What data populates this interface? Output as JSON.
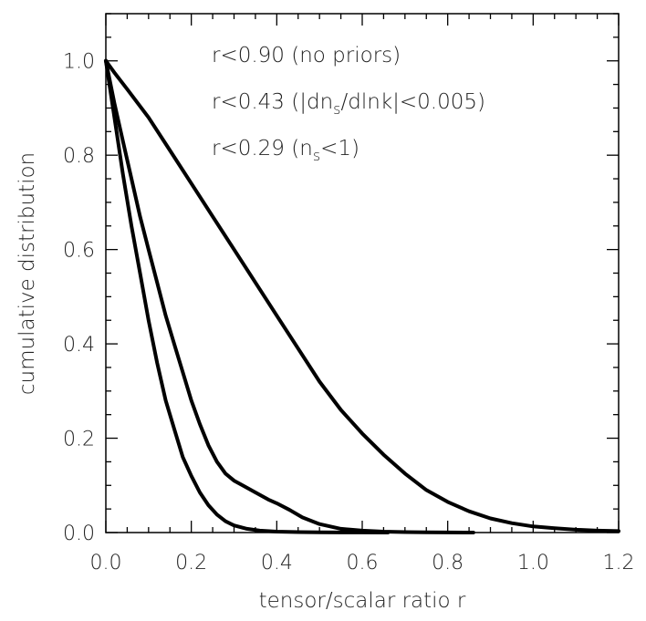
{
  "chart_data": {
    "type": "line",
    "xlabel": "tensor/scalar ratio r",
    "ylabel": "cumulative distribution",
    "xlim": [
      0,
      1.2
    ],
    "ylim": [
      0,
      1.1
    ],
    "x_ticks": [
      "0.0",
      "0.2",
      "0.4",
      "0.6",
      "0.8",
      "1.0",
      "1.2"
    ],
    "y_ticks": [
      "0.0",
      "0.2",
      "0.4",
      "0.6",
      "0.8",
      "1.0"
    ],
    "grid": false,
    "annotations": {
      "line1": "r<0.90 (no priors)",
      "line2_prefix": "r<0.43 (|dn",
      "line2_sub": "s",
      "line2_suffix": "/dlnk|<0.005)",
      "line3_prefix": "r<0.29 (n",
      "line3_sub": "s",
      "line3_suffix": "<1)"
    },
    "series": [
      {
        "x": [
          0,
          0.02,
          0.05,
          0.1,
          0.15,
          0.2,
          0.25,
          0.3,
          0.35,
          0.4,
          0.45,
          0.5,
          0.55,
          0.6,
          0.65,
          0.7,
          0.75,
          0.8,
          0.85,
          0.9,
          0.95,
          1.0,
          1.05,
          1.1,
          1.15,
          1.2
        ],
        "y": [
          1.0,
          0.975,
          0.94,
          0.88,
          0.81,
          0.74,
          0.67,
          0.6,
          0.53,
          0.46,
          0.39,
          0.32,
          0.26,
          0.21,
          0.165,
          0.125,
          0.09,
          0.065,
          0.045,
          0.03,
          0.02,
          0.013,
          0.009,
          0.006,
          0.004,
          0.003
        ]
      },
      {
        "x": [
          0,
          0.02,
          0.04,
          0.06,
          0.08,
          0.1,
          0.12,
          0.14,
          0.16,
          0.18,
          0.2,
          0.22,
          0.24,
          0.26,
          0.28,
          0.3,
          0.32,
          0.35,
          0.38,
          0.4,
          0.43,
          0.46,
          0.5,
          0.55,
          0.6,
          0.65,
          0.7,
          0.75,
          0.8,
          0.86
        ],
        "y": [
          1.0,
          0.91,
          0.83,
          0.75,
          0.67,
          0.6,
          0.53,
          0.46,
          0.4,
          0.34,
          0.28,
          0.23,
          0.185,
          0.15,
          0.125,
          0.11,
          0.1,
          0.085,
          0.07,
          0.062,
          0.048,
          0.032,
          0.018,
          0.008,
          0.004,
          0.002,
          0.001,
          0.0005,
          0.0002,
          0
        ]
      },
      {
        "x": [
          0,
          0.02,
          0.04,
          0.06,
          0.08,
          0.1,
          0.12,
          0.14,
          0.16,
          0.18,
          0.2,
          0.22,
          0.24,
          0.26,
          0.28,
          0.3,
          0.33,
          0.36,
          0.4,
          0.45,
          0.5,
          0.55,
          0.6,
          0.66
        ],
        "y": [
          1.0,
          0.88,
          0.76,
          0.65,
          0.55,
          0.45,
          0.36,
          0.28,
          0.22,
          0.16,
          0.12,
          0.085,
          0.058,
          0.038,
          0.024,
          0.015,
          0.008,
          0.004,
          0.002,
          0.001,
          0.0005,
          0.0002,
          0.0001,
          0
        ]
      }
    ]
  }
}
